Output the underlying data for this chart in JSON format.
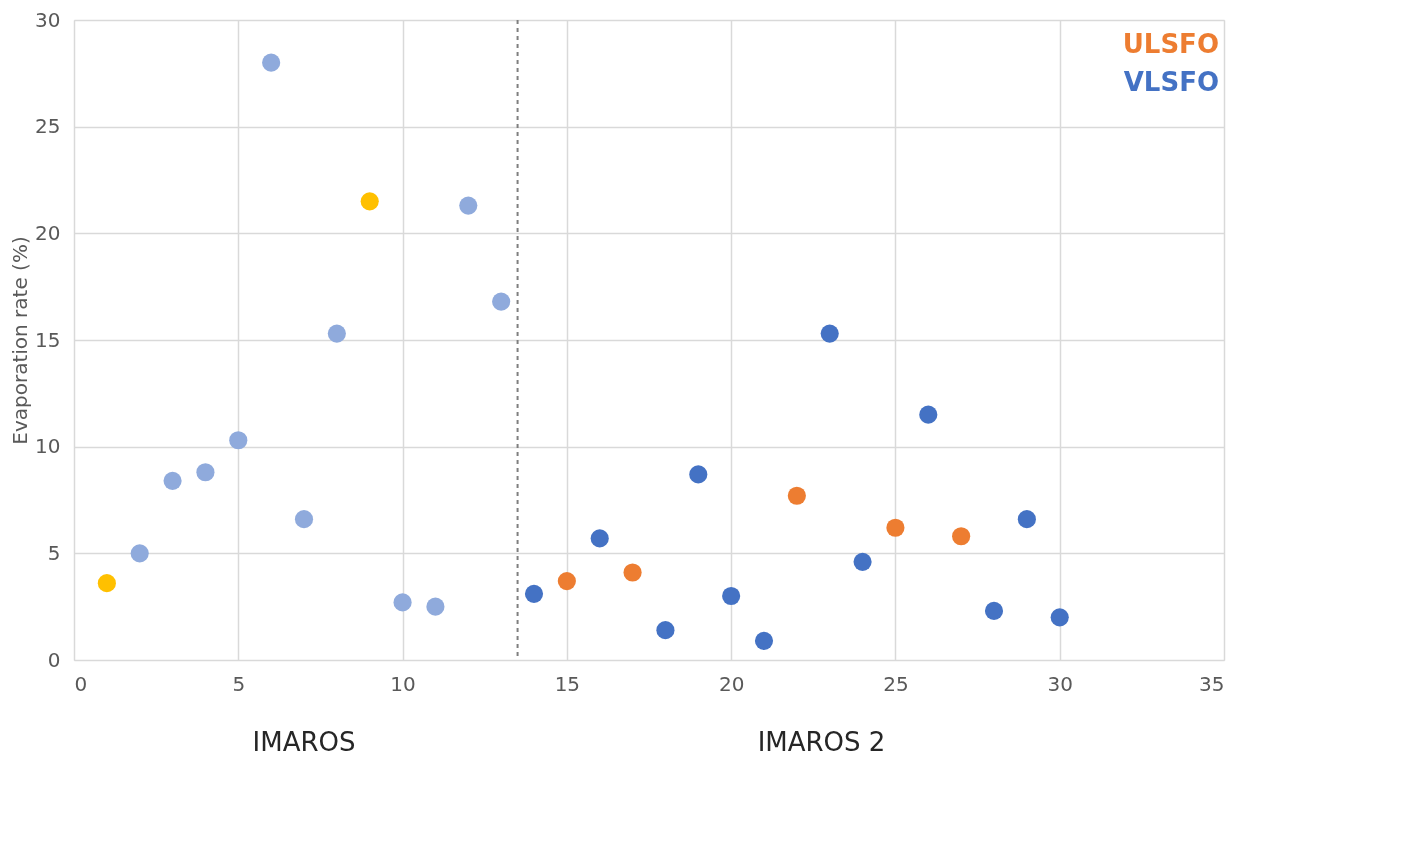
{
  "chart_data": {
    "type": "scatter",
    "ylabel": "Evaporation rate (%)",
    "xlim": [
      0,
      35
    ],
    "xticks": [
      0,
      5,
      10,
      15,
      20,
      25,
      30,
      35
    ],
    "ylim": [
      0,
      30
    ],
    "yticks": [
      0,
      5,
      10,
      15,
      20,
      25,
      30
    ],
    "grid": true,
    "legend": "top right",
    "marker": "circle",
    "series": [
      {
        "color": "#ffc000",
        "x": [
          1,
          9
        ],
        "values": [
          3.6,
          21.5
        ]
      },
      {
        "color": "#8faadc",
        "x": [
          2,
          3,
          4,
          5,
          6,
          7,
          8,
          10,
          11,
          12,
          13
        ],
        "values": [
          5.0,
          8.4,
          8.8,
          10.3,
          28.0,
          6.6,
          15.3,
          2.7,
          2.5,
          21.3,
          16.8
        ]
      },
      {
        "name": "ULSFO",
        "color": "#ed7d31",
        "x": [
          15,
          17,
          22,
          25,
          27
        ],
        "values": [
          3.7,
          4.1,
          7.7,
          6.2,
          5.8
        ]
      },
      {
        "name": "VLSFO",
        "color": "#4472c4",
        "x": [
          14,
          16,
          18,
          19,
          20,
          21,
          23,
          24,
          26,
          28,
          29,
          30
        ],
        "values": [
          3.1,
          5.7,
          1.4,
          8.7,
          3.0,
          0.9,
          15.3,
          4.6,
          11.5,
          2.3,
          6.6,
          2.0
        ]
      }
    ],
    "ref_lines": [
      {
        "axis": "x",
        "value": 13.5,
        "color": "#7f7f7f",
        "line_style": "dashed"
      }
    ],
    "annotations": [
      "IMAROS",
      "IMAROS 2"
    ]
  }
}
